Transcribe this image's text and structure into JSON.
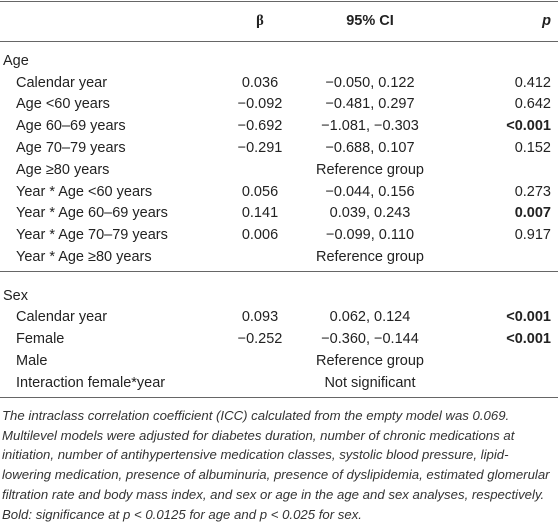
{
  "table": {
    "header": [
      "β",
      "95% CI",
      "p"
    ],
    "sections": [
      {
        "title": "Age",
        "rows": [
          {
            "cells": [
              "Calendar year",
              "0.036",
              "−0.050, 0.122",
              "0.412"
            ],
            "bold_p": false
          },
          {
            "cells": [
              "Age <60 years",
              "−0.092",
              "−0.481, 0.297",
              "0.642"
            ],
            "bold_p": false
          },
          {
            "cells": [
              "Age 60–69 years",
              "−0.692",
              "−1.081, −0.303",
              "<0.001"
            ],
            "bold_p": true
          },
          {
            "cells": [
              "Age 70–79 years",
              "−0.291",
              "−0.688, 0.107",
              "0.152"
            ],
            "bold_p": false
          },
          {
            "cells": [
              "Age ≥80 years",
              "Reference group"
            ],
            "bold_p": false
          },
          {
            "cells": [
              "Year * Age <60 years",
              "0.056",
              "−0.044, 0.156",
              "0.273"
            ],
            "bold_p": false
          },
          {
            "cells": [
              "Year * Age 60–69 years",
              "0.141",
              "0.039, 0.243",
              "0.007"
            ],
            "bold_p": true
          },
          {
            "cells": [
              "Year * Age 70–79 years",
              "0.006",
              "−0.099, 0.110",
              "0.917"
            ],
            "bold_p": false
          },
          {
            "cells": [
              "Year * Age ≥80 years",
              "Reference group"
            ],
            "bold_p": false
          }
        ]
      },
      {
        "title": "Sex",
        "rows": [
          {
            "cells": [
              "Calendar year",
              "0.093",
              "0.062, 0.124",
              "<0.001"
            ],
            "bold_p": true
          },
          {
            "cells": [
              "Female",
              "−0.252",
              "−0.360, −0.144",
              "<0.001"
            ],
            "bold_p": true
          },
          {
            "cells": [
              "Male",
              "Reference group"
            ],
            "bold_p": false
          },
          {
            "cells": [
              "Interaction female*year",
              "Not significant"
            ],
            "bold_p": false
          }
        ]
      }
    ],
    "footnote": "The intraclass correlation coefficient (ICC) calculated from the empty model was 0.069. Multilevel models were adjusted for diabetes duration, number of chronic medications at initiation, number of antihypertensive medication classes, systolic blood pressure, lipid-lowering medication, presence of albuminuria, presence of dyslipidemia, estimated glomerular filtration rate and body mass index, and sex or age in the age and sex analyses, respectively. Bold: significance at p < 0.0125 for age and p < 0.025 for sex."
  }
}
